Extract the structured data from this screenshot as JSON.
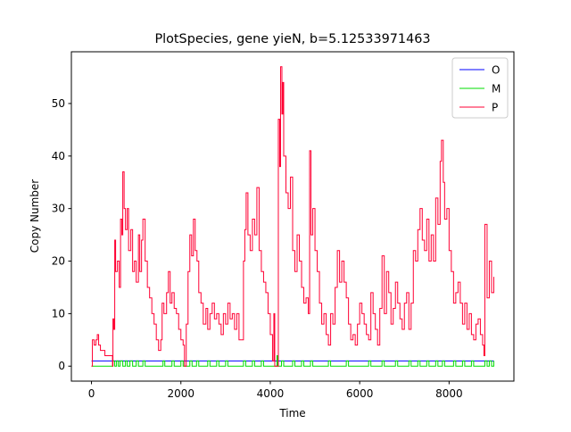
{
  "chart_data": {
    "type": "line",
    "title": "PlotSpecies, gene yieN, b=5.12533971463",
    "xlabel": "Time",
    "ylabel": "Copy Number",
    "xlim": [
      -450,
      9450
    ],
    "xticks": [
      0,
      2000,
      4000,
      6000,
      8000
    ],
    "ylim": [
      -2.85,
      59.85
    ],
    "yticks": [
      0,
      10,
      20,
      30,
      40,
      50
    ],
    "legend": "upper right",
    "step": true,
    "series": [
      {
        "name": "O",
        "color": "#0000ff",
        "x": [
          0,
          9000
        ],
        "values": [
          1,
          1
        ]
      },
      {
        "name": "M",
        "color": "#00dd00",
        "x": [
          0,
          480,
          520,
          560,
          600,
          640,
          700,
          760,
          800,
          860,
          920,
          1000,
          1050,
          1150,
          1200,
          1600,
          1640,
          1800,
          1850,
          2000,
          2050,
          2200,
          2250,
          2350,
          2400,
          2600,
          2650,
          2800,
          2850,
          3000,
          3050,
          3400,
          3450,
          3600,
          3650,
          3800,
          3850,
          4150,
          4170,
          4250,
          4300,
          4500,
          4550,
          4700,
          4750,
          4900,
          4950,
          5300,
          5350,
          5700,
          5750,
          6200,
          6250,
          6500,
          6550,
          6800,
          6850,
          7100,
          7150,
          7300,
          7350,
          7500,
          7550,
          7700,
          7750,
          7850,
          7900,
          8100,
          8150,
          8300,
          8350,
          8500,
          8550,
          8800,
          8850,
          8900,
          8950,
          9000
        ],
        "values": [
          0,
          1,
          0,
          1,
          0,
          1,
          0,
          1,
          0,
          1,
          0,
          1,
          0,
          1,
          0,
          1,
          0,
          1,
          0,
          1,
          0,
          1,
          0,
          1,
          0,
          1,
          0,
          1,
          0,
          1,
          0,
          1,
          0,
          1,
          0,
          1,
          0,
          2,
          0,
          1,
          0,
          1,
          0,
          1,
          0,
          1,
          0,
          1,
          0,
          1,
          0,
          1,
          0,
          1,
          0,
          1,
          0,
          1,
          0,
          1,
          0,
          1,
          0,
          1,
          0,
          1,
          0,
          1,
          0,
          1,
          0,
          1,
          0,
          1,
          0,
          1,
          0,
          1
        ]
      },
      {
        "name": "P",
        "color": "#ff0033",
        "x": [
          0,
          20,
          60,
          100,
          130,
          160,
          200,
          300,
          450,
          470,
          480,
          500,
          520,
          540,
          580,
          620,
          650,
          680,
          700,
          730,
          760,
          800,
          830,
          880,
          920,
          960,
          1000,
          1050,
          1080,
          1120,
          1150,
          1200,
          1250,
          1300,
          1350,
          1400,
          1450,
          1500,
          1550,
          1580,
          1620,
          1680,
          1720,
          1760,
          1800,
          1850,
          1900,
          1950,
          2000,
          2050,
          2080,
          2120,
          2160,
          2200,
          2240,
          2280,
          2320,
          2360,
          2400,
          2450,
          2500,
          2560,
          2600,
          2650,
          2700,
          2750,
          2800,
          2850,
          2900,
          2950,
          3000,
          3050,
          3100,
          3150,
          3200,
          3250,
          3300,
          3400,
          3430,
          3460,
          3500,
          3550,
          3600,
          3650,
          3700,
          3750,
          3800,
          3850,
          3900,
          3950,
          4000,
          4050,
          4080,
          4100,
          4180,
          4210,
          4230,
          4260,
          4280,
          4300,
          4350,
          4400,
          4450,
          4500,
          4550,
          4600,
          4650,
          4700,
          4750,
          4800,
          4850,
          4880,
          4910,
          4950,
          5000,
          5050,
          5100,
          5150,
          5200,
          5250,
          5300,
          5350,
          5400,
          5450,
          5500,
          5550,
          5600,
          5650,
          5700,
          5750,
          5800,
          5850,
          5900,
          5950,
          6000,
          6050,
          6100,
          6150,
          6200,
          6250,
          6300,
          6350,
          6400,
          6450,
          6500,
          6550,
          6600,
          6650,
          6700,
          6750,
          6800,
          6850,
          6900,
          6950,
          7000,
          7050,
          7100,
          7150,
          7200,
          7250,
          7300,
          7350,
          7400,
          7450,
          7500,
          7550,
          7600,
          7650,
          7700,
          7750,
          7800,
          7830,
          7870,
          7900,
          7950,
          8000,
          8050,
          8100,
          8150,
          8200,
          8250,
          8300,
          8350,
          8400,
          8450,
          8500,
          8550,
          8600,
          8650,
          8700,
          8750,
          8780,
          8800,
          8850,
          8900,
          8950,
          9000
        ],
        "values": [
          0,
          5,
          4,
          5,
          6,
          4,
          3,
          2,
          2,
          0,
          9,
          7,
          24,
          18,
          20,
          15,
          28,
          25,
          37,
          30,
          26,
          30,
          22,
          26,
          18,
          20,
          16,
          25,
          18,
          24,
          28,
          20,
          15,
          13,
          10,
          8,
          5,
          3,
          5,
          12,
          10,
          14,
          18,
          12,
          14,
          11,
          10,
          7,
          5,
          4,
          0,
          8,
          18,
          25,
          21,
          28,
          22,
          20,
          14,
          12,
          8,
          11,
          7,
          10,
          12,
          9,
          10,
          8,
          6,
          10,
          8,
          12,
          9,
          10,
          7,
          10,
          5,
          20,
          26,
          33,
          25,
          22,
          28,
          25,
          34,
          22,
          18,
          16,
          14,
          10,
          6,
          1,
          10,
          0,
          47,
          38,
          57,
          48,
          54,
          40,
          33,
          30,
          36,
          22,
          18,
          25,
          20,
          15,
          12,
          13,
          10,
          41,
          25,
          30,
          22,
          18,
          12,
          8,
          10,
          6,
          4,
          10,
          8,
          15,
          22,
          16,
          20,
          16,
          13,
          8,
          5,
          6,
          4,
          8,
          12,
          10,
          8,
          6,
          5,
          14,
          10,
          7,
          4,
          11,
          21,
          10,
          18,
          14,
          8,
          11,
          16,
          12,
          9,
          7,
          12,
          14,
          7,
          12,
          22,
          20,
          26,
          30,
          24,
          22,
          28,
          20,
          25,
          20,
          32,
          27,
          39,
          43,
          35,
          28,
          30,
          22,
          18,
          12,
          14,
          16,
          12,
          8,
          12,
          7,
          10,
          6,
          5,
          8,
          9,
          6,
          4,
          2,
          27,
          13,
          20,
          14,
          17
        ]
      }
    ]
  }
}
